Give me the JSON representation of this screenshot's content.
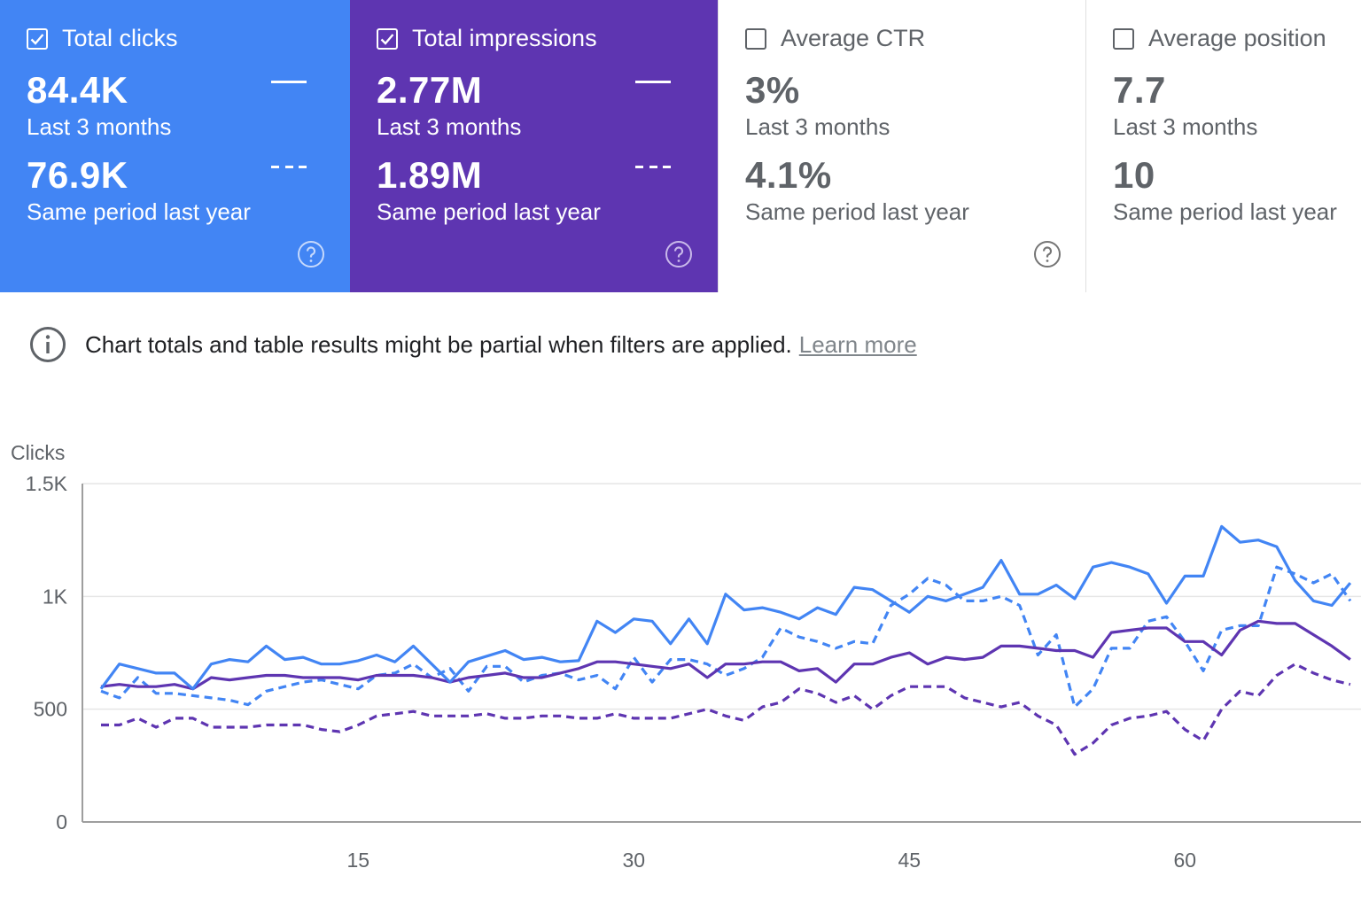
{
  "cards": [
    {
      "label": "Total clicks",
      "checked": true,
      "value": "84.4K",
      "value_caption": "Last 3 months",
      "prev_value": "76.9K",
      "prev_caption": "Same period last year",
      "color": "#4285f4"
    },
    {
      "label": "Total impressions",
      "checked": true,
      "value": "2.77M",
      "value_caption": "Last 3 months",
      "prev_value": "1.89M",
      "prev_caption": "Same period last year",
      "color": "#5e35b1"
    },
    {
      "label": "Average CTR",
      "checked": false,
      "value": "3%",
      "value_caption": "Last 3 months",
      "prev_value": "4.1%",
      "prev_caption": "Same period last year",
      "color": "#ffffff"
    },
    {
      "label": "Average position",
      "checked": false,
      "value": "7.7",
      "value_caption": "Last 3 months",
      "prev_value": "10",
      "prev_caption": "Same period last year",
      "color": "#ffffff"
    }
  ],
  "notice": {
    "text": "Chart totals and table results might be partial when filters are applied.",
    "link": "Learn more"
  },
  "chart_data": {
    "type": "line",
    "ylabel": "Clicks",
    "ylim": [
      0,
      1500
    ],
    "yticks": [
      0,
      500,
      1000,
      1500
    ],
    "ytick_labels": [
      "0",
      "500",
      "1K",
      "1.5K"
    ],
    "xlim": [
      1,
      73
    ],
    "xticks": [
      15,
      30,
      45,
      60
    ],
    "xtick_labels": [
      "15",
      "30",
      "45",
      "60"
    ],
    "series": [
      {
        "name": "Total clicks (Last 3 months)",
        "color": "#4285f4",
        "style": "solid",
        "values": [
          590,
          700,
          680,
          660,
          660,
          590,
          700,
          720,
          710,
          780,
          720,
          730,
          700,
          700,
          715,
          740,
          710,
          780,
          700,
          620,
          710,
          735,
          760,
          720,
          730,
          710,
          715,
          890,
          840,
          900,
          890,
          790,
          900,
          790,
          1010,
          940,
          950,
          930,
          900,
          950,
          920,
          1040,
          1030,
          980,
          930,
          1000,
          980,
          1010,
          1040,
          1160,
          1010,
          1010,
          1050,
          990,
          1130,
          1150,
          1130,
          1100,
          970,
          1090,
          1090,
          1310,
          1240,
          1250,
          1220,
          1070,
          980,
          960,
          1060
        ]
      },
      {
        "name": "Total clicks (Same period last year)",
        "color": "#4285f4",
        "style": "dashed",
        "values": [
          580,
          550,
          640,
          570,
          570,
          560,
          550,
          540,
          520,
          580,
          600,
          620,
          630,
          610,
          590,
          650,
          660,
          700,
          640,
          680,
          580,
          690,
          690,
          620,
          650,
          660,
          630,
          650,
          590,
          730,
          620,
          720,
          720,
          700,
          650,
          680,
          730,
          860,
          820,
          800,
          770,
          800,
          790,
          960,
          1010,
          1080,
          1050,
          980,
          980,
          1000,
          960,
          740,
          830,
          510,
          590,
          770,
          770,
          890,
          910,
          800,
          670,
          850,
          870,
          870,
          1130,
          1100,
          1060,
          1100,
          980
        ]
      },
      {
        "name": "Total impressions (Last 3 months)",
        "color": "#5e35b1",
        "style": "solid",
        "values": [
          600,
          610,
          600,
          600,
          610,
          590,
          640,
          630,
          640,
          650,
          650,
          640,
          640,
          640,
          630,
          650,
          650,
          650,
          640,
          620,
          640,
          650,
          660,
          640,
          640,
          660,
          680,
          710,
          710,
          700,
          690,
          680,
          700,
          640,
          700,
          700,
          710,
          710,
          670,
          680,
          620,
          700,
          700,
          730,
          750,
          700,
          730,
          720,
          730,
          780,
          780,
          770,
          760,
          760,
          730,
          840,
          850,
          860,
          860,
          800,
          800,
          740,
          850,
          890,
          880,
          880,
          830,
          780,
          720
        ]
      },
      {
        "name": "Total impressions (Same period last year)",
        "color": "#5e35b1",
        "style": "dashed",
        "values": [
          430,
          430,
          460,
          420,
          460,
          460,
          420,
          420,
          420,
          430,
          430,
          430,
          410,
          400,
          430,
          470,
          480,
          490,
          470,
          470,
          470,
          480,
          460,
          460,
          470,
          470,
          460,
          460,
          480,
          460,
          460,
          460,
          480,
          500,
          470,
          450,
          510,
          530,
          590,
          570,
          530,
          560,
          500,
          560,
          600,
          600,
          600,
          550,
          530,
          510,
          530,
          470,
          430,
          300,
          350,
          430,
          460,
          470,
          490,
          410,
          360,
          500,
          580,
          560,
          650,
          700,
          660,
          630,
          610
        ]
      }
    ]
  }
}
